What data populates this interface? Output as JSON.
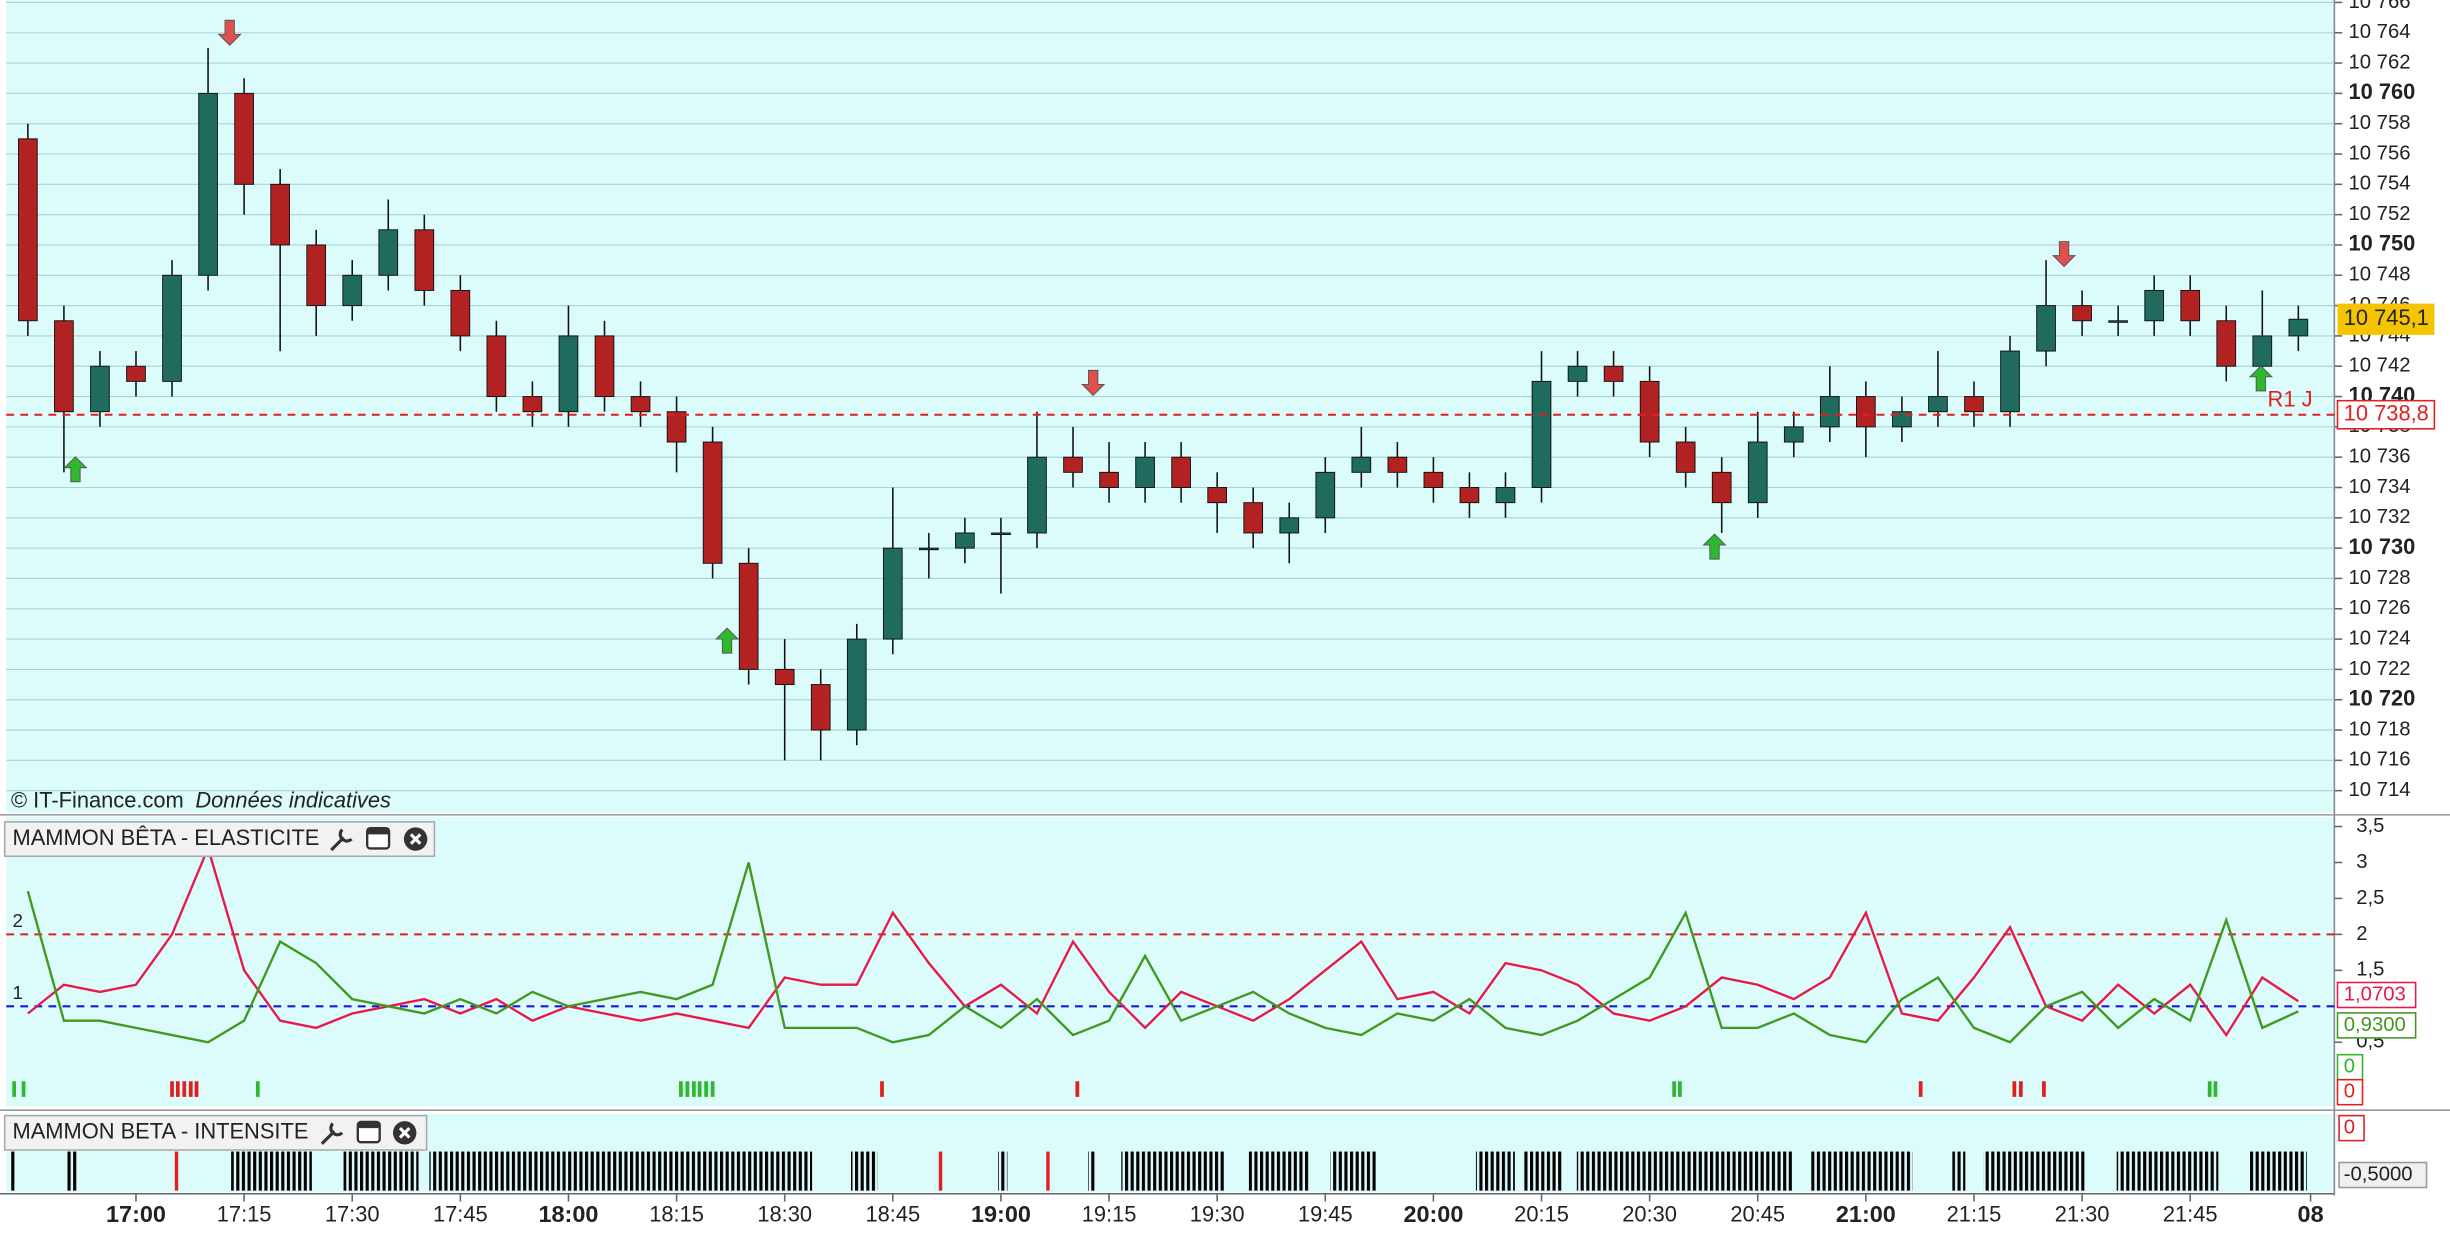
{
  "chart_data": [
    {
      "type": "candlestick",
      "watermark": "© IT-Finance.com",
      "note": "Données indicatives",
      "x": [
        -15,
        -10,
        -5,
        0,
        5,
        10,
        15,
        20,
        25,
        30,
        35,
        40,
        45,
        50,
        55,
        60,
        65,
        70,
        75,
        80,
        85,
        90,
        95,
        100,
        105,
        110,
        115,
        120,
        125,
        130,
        135,
        140,
        145,
        150,
        155,
        160,
        165,
        170,
        175,
        180,
        185,
        190,
        195,
        200,
        205,
        210,
        215,
        220,
        225,
        230,
        235,
        240,
        245,
        250,
        255,
        260,
        265,
        270,
        275,
        280,
        285,
        290,
        295,
        300
      ],
      "open": [
        10757,
        10745,
        10739,
        10742,
        10741,
        10748,
        10760,
        10754,
        10750,
        10746,
        10748,
        10751,
        10747,
        10744,
        10740,
        10739,
        10744,
        10740,
        10739,
        10737,
        10729,
        10722,
        10721,
        10718,
        10724,
        10730,
        10730,
        10731,
        10731,
        10736,
        10735,
        10734,
        10736,
        10734,
        10733,
        10731,
        10732,
        10735,
        10736,
        10735,
        10734,
        10733,
        10734,
        10741,
        10742,
        10741,
        10737,
        10735,
        10733,
        10737,
        10738,
        10740,
        10738,
        10739,
        10740,
        10739,
        10743,
        10746,
        10745,
        10745,
        10747,
        10745,
        10742,
        10744
      ],
      "high": [
        10758,
        10746,
        10743,
        10743,
        10749,
        10763,
        10761,
        10755,
        10751,
        10749,
        10753,
        10752,
        10748,
        10745,
        10741,
        10746,
        10745,
        10741,
        10740,
        10738,
        10730,
        10724,
        10722,
        10725,
        10734,
        10731,
        10732,
        10732,
        10739,
        10738,
        10737,
        10737,
        10737,
        10735,
        10734,
        10733,
        10736,
        10738,
        10737,
        10736,
        10735,
        10735,
        10743,
        10743,
        10743,
        10742,
        10738,
        10736,
        10739,
        10739,
        10742,
        10741,
        10740,
        10743,
        10741,
        10744,
        10749,
        10747,
        10746,
        10748,
        10748,
        10746,
        10747,
        10746
      ],
      "low": [
        10744,
        10735,
        10738,
        10740,
        10740,
        10747,
        10752,
        10743,
        10744,
        10745,
        10747,
        10746,
        10743,
        10739,
        10738,
        10738,
        10739,
        10738,
        10735,
        10728,
        10721,
        10716,
        10716,
        10717,
        10723,
        10728,
        10729,
        10727,
        10730,
        10734,
        10733,
        10733,
        10733,
        10731,
        10730,
        10729,
        10731,
        10734,
        10734,
        10733,
        10732,
        10732,
        10733,
        10740,
        10740,
        10736,
        10734,
        10731,
        10732,
        10736,
        10737,
        10736,
        10737,
        10738,
        10738,
        10738,
        10742,
        10744,
        10744,
        10744,
        10744,
        10741,
        10741,
        10743
      ],
      "close": [
        10745,
        10739,
        10742,
        10741,
        10748,
        10760,
        10754,
        10750,
        10746,
        10748,
        10751,
        10747,
        10744,
        10740,
        10739,
        10744,
        10740,
        10739,
        10737,
        10729,
        10722,
        10721,
        10718,
        10724,
        10730,
        10730,
        10731,
        10731,
        10736,
        10735,
        10734,
        10736,
        10734,
        10733,
        10731,
        10732,
        10735,
        10736,
        10735,
        10734,
        10733,
        10734,
        10741,
        10742,
        10741,
        10737,
        10735,
        10733,
        10737,
        10738,
        10740,
        10738,
        10739,
        10740,
        10739,
        10743,
        10746,
        10745,
        10745,
        10747,
        10745,
        10742,
        10744,
        10745.1
      ],
      "up_color": "#1f6b5e",
      "down_color": "#b22222",
      "ylim": [
        10712.56,
        10766.16
      ],
      "yticks": [
        {
          "value": 10714,
          "label": "10 714"
        },
        {
          "value": 10716,
          "label": "10 716"
        },
        {
          "value": 10718,
          "label": "10 718"
        },
        {
          "value": 10720,
          "label": "10 720"
        },
        {
          "value": 10722,
          "label": "10 722"
        },
        {
          "value": 10724,
          "label": "10 724"
        },
        {
          "value": 10726,
          "label": "10 726"
        },
        {
          "value": 10728,
          "label": "10 728"
        },
        {
          "value": 10730,
          "label": "10 730"
        },
        {
          "value": 10732,
          "label": "10 732"
        },
        {
          "value": 10734,
          "label": "10 734"
        },
        {
          "value": 10736,
          "label": "10 736"
        },
        {
          "value": 10738,
          "label": "10 738"
        },
        {
          "value": 10740,
          "label": "10 740"
        },
        {
          "value": 10742,
          "label": "10 742"
        },
        {
          "value": 10744,
          "label": "10 744"
        },
        {
          "value": 10746,
          "label": "10 746"
        },
        {
          "value": 10748,
          "label": "10 748"
        },
        {
          "value": 10750,
          "label": "10 750"
        },
        {
          "value": 10752,
          "label": "10 752"
        },
        {
          "value": 10754,
          "label": "10 754"
        },
        {
          "value": 10756,
          "label": "10 756"
        },
        {
          "value": 10758,
          "label": "10 758"
        },
        {
          "value": 10760,
          "label": "10 760"
        },
        {
          "value": 10762,
          "label": "10 762"
        },
        {
          "value": 10764,
          "label": "10 764"
        },
        {
          "value": 10766,
          "label": "10 766"
        }
      ],
      "grid": true,
      "level": {
        "name": "R1 J",
        "value": 10738.8,
        "value_label": "10 738,8",
        "color": "#e02020"
      },
      "last_price": {
        "value": 10745.1,
        "value_label": "10 745,1",
        "color": "#f5c400"
      },
      "sell_arrows": {
        "x": [
          13,
          132.8,
          267.5
        ],
        "y": [
          10764,
          10740.9,
          10749.4
        ],
        "color": "#e05050"
      },
      "buy_arrows": {
        "x": [
          -8.4,
          82,
          219,
          294.8
        ],
        "y": [
          10735.2,
          10723.9,
          10730.1,
          10741.2
        ],
        "color": "#2eb82e"
      }
    },
    {
      "type": "line",
      "title": "MAMMON BÊTA - ELASTICITE",
      "x": [
        -15,
        -10,
        -5,
        0,
        5,
        10,
        15,
        20,
        25,
        30,
        35,
        40,
        45,
        50,
        55,
        60,
        65,
        70,
        75,
        80,
        85,
        90,
        95,
        100,
        105,
        110,
        115,
        120,
        125,
        130,
        135,
        140,
        145,
        150,
        155,
        160,
        165,
        170,
        175,
        180,
        185,
        190,
        195,
        200,
        205,
        210,
        215,
        220,
        225,
        230,
        235,
        240,
        245,
        250,
        255,
        260,
        265,
        270,
        275,
        280,
        285,
        290,
        295,
        300
      ],
      "series": [
        {
          "color": "#e8194a",
          "values": [
            0.9,
            1.3,
            1.2,
            1.3,
            2.0,
            3.2,
            1.5,
            0.8,
            0.7,
            0.9,
            1.0,
            1.1,
            0.9,
            1.1,
            0.8,
            1.0,
            0.9,
            0.8,
            0.9,
            0.8,
            0.7,
            1.4,
            1.3,
            1.3,
            2.3,
            1.6,
            1.0,
            1.3,
            0.9,
            1.9,
            1.2,
            0.7,
            1.2,
            1.0,
            0.8,
            1.1,
            1.5,
            1.9,
            1.1,
            1.2,
            0.9,
            1.6,
            1.5,
            1.3,
            0.9,
            0.8,
            1.0,
            1.4,
            1.3,
            1.1,
            1.4,
            2.3,
            0.9,
            0.8,
            1.4,
            2.1,
            1.0,
            0.8,
            1.3,
            0.9,
            1.3,
            0.6,
            1.4,
            1.0703
          ],
          "last_label": "1,0703"
        },
        {
          "color": "#3f9a1f",
          "values": [
            2.6,
            0.8,
            0.8,
            0.7,
            0.6,
            0.5,
            0.8,
            1.9,
            1.6,
            1.1,
            1.0,
            0.9,
            1.1,
            0.9,
            1.2,
            1.0,
            1.1,
            1.2,
            1.1,
            1.3,
            3.0,
            0.7,
            0.7,
            0.7,
            0.5,
            0.6,
            1.0,
            0.7,
            1.1,
            0.6,
            0.8,
            1.7,
            0.8,
            1.0,
            1.2,
            0.9,
            0.7,
            0.6,
            0.9,
            0.8,
            1.1,
            0.7,
            0.6,
            0.8,
            1.1,
            1.4,
            2.3,
            0.7,
            0.7,
            0.9,
            0.6,
            0.5,
            1.1,
            1.4,
            0.7,
            0.5,
            1.0,
            1.2,
            0.7,
            1.1,
            0.8,
            2.2,
            0.7,
            0.93
          ],
          "last_label": "0,9300"
        }
      ],
      "ylim": [
        -0.39,
        3.63
      ],
      "yticks": [
        {
          "value": 0.5,
          "label": "0,5"
        },
        {
          "value": 1.5,
          "label": "1,5"
        },
        2,
        {
          "value": 2.5,
          "label": "2,5"
        },
        3,
        {
          "value": 3.5,
          "label": "3,5"
        }
      ],
      "levels": [
        {
          "value": 2,
          "color": "#e02020"
        },
        {
          "value": 1,
          "color": "#1a1ad0"
        }
      ],
      "green_signals": {
        "x": [
          -16.9,
          -15.6,
          16.9,
          75.6,
          76.5,
          77.4,
          78.2,
          79.1,
          80,
          213.4,
          214.2,
          287.7,
          288.5
        ],
        "color": "#2eb82e",
        "value": 0
      },
      "red_signals": {
        "x": [
          5,
          5.8,
          6.7,
          7.6,
          8.4,
          103.5,
          130.6,
          247.6,
          260.6,
          261.5,
          264.7
        ],
        "color": "#e02020",
        "value": 0
      }
    },
    {
      "type": "bars",
      "title": "MAMMON BETA - INTENSITE",
      "bar_ranges": [
        [
          -17.5,
          -16.7
        ],
        [
          -9.5,
          -8
        ],
        [
          13.2,
          24.4
        ],
        [
          28.8,
          39.2
        ],
        [
          40.7,
          93.8
        ],
        [
          99.2,
          102.9
        ],
        [
          119.6,
          120.9
        ],
        [
          132.1,
          133
        ],
        [
          136.7,
          151.2
        ],
        [
          154.4,
          162.7
        ],
        [
          165.7,
          172.2
        ],
        [
          185.9,
          191.3
        ],
        [
          192.4,
          197.8
        ],
        [
          199.9,
          229.8
        ],
        [
          232.4,
          246.5
        ],
        [
          252,
          253.8
        ],
        [
          256.3,
          270.5
        ],
        [
          274.8,
          288.9
        ],
        [
          293.2,
          301.2
        ]
      ],
      "bar_color": "#000000",
      "red_bars": [
        5.6,
        111.6,
        126.5
      ],
      "red_color": "#e02020",
      "ylim": [
        -0.683,
        0.133
      ],
      "yticks": [
        0,
        {
          "value": -0.5,
          "label": "-0,5000"
        }
      ],
      "xlim": [
        -18,
        305
      ],
      "xticks": [
        {
          "value": 0,
          "label": "17:00"
        },
        {
          "value": 15,
          "label": "17:15"
        },
        {
          "value": 30,
          "label": "17:30"
        },
        {
          "value": 45,
          "label": "17:45"
        },
        {
          "value": 60,
          "label": "18:00"
        },
        {
          "value": 75,
          "label": "18:15"
        },
        {
          "value": 90,
          "label": "18:30"
        },
        {
          "value": 105,
          "label": "18:45"
        },
        {
          "value": 120,
          "label": "19:00"
        },
        {
          "value": 135,
          "label": "19:15"
        },
        {
          "value": 150,
          "label": "19:30"
        },
        {
          "value": 165,
          "label": "19:45"
        },
        {
          "value": 180,
          "label": "20:00"
        },
        {
          "value": 195,
          "label": "20:15"
        },
        {
          "value": 210,
          "label": "20:30"
        },
        {
          "value": 225,
          "label": "20:45"
        },
        {
          "value": 240,
          "label": "21:00"
        },
        {
          "value": 255,
          "label": "21:15"
        },
        {
          "value": 270,
          "label": "21:30"
        },
        {
          "value": 285,
          "label": "21:45"
        },
        {
          "value": 301.7,
          "label": "08"
        }
      ]
    }
  ]
}
